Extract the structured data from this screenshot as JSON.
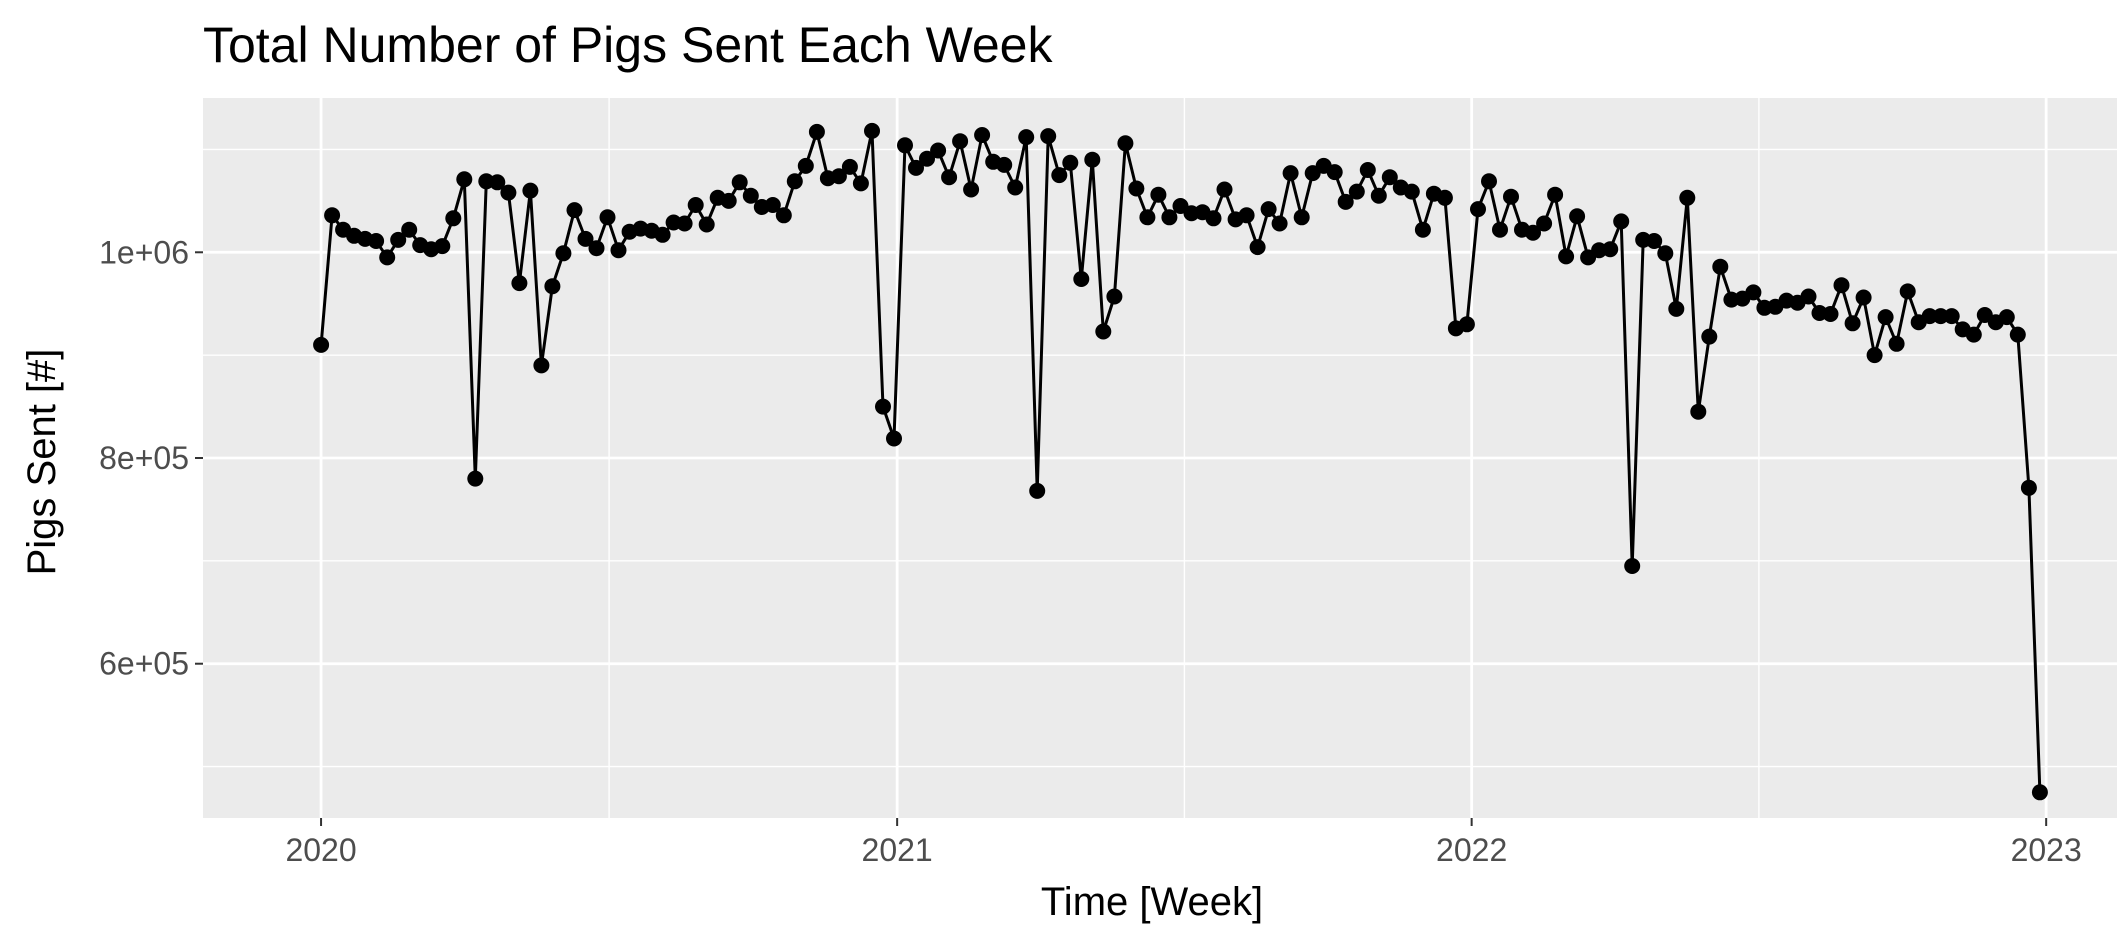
{
  "chart_data": {
    "type": "line",
    "title": "Total Number of Pigs Sent Each Week",
    "xlabel": "Time [Week]",
    "ylabel": "Pigs Sent [#]",
    "x_ticks": [
      "2020",
      "2021",
      "2022",
      "2023"
    ],
    "y_ticks": [
      "6e+05",
      "8e+05",
      "1e+06"
    ],
    "y_tick_values": [
      600000,
      800000,
      1000000
    ],
    "xlim": [
      "2019-10-18",
      "2023-02-15"
    ],
    "ylim": [
      450000,
      1150000
    ],
    "grid": true,
    "legend": "none",
    "colors": {
      "panel": "#ebebeb",
      "grid": "#ffffff",
      "line": "#000000",
      "point": "#000000"
    },
    "series": [
      {
        "x": [
          "2020-01-01",
          "2020-01-08",
          "2020-01-15",
          "2020-01-22",
          "2020-01-29",
          "2020-02-05",
          "2020-02-12",
          "2020-02-19",
          "2020-02-26",
          "2020-03-04",
          "2020-03-11",
          "2020-03-18",
          "2020-03-25",
          "2020-04-01",
          "2020-04-08",
          "2020-04-15",
          "2020-04-22",
          "2020-04-29",
          "2020-05-06",
          "2020-05-13",
          "2020-05-20",
          "2020-05-27",
          "2020-06-03",
          "2020-06-10",
          "2020-06-17",
          "2020-06-24",
          "2020-07-01",
          "2020-07-08",
          "2020-07-15",
          "2020-07-22",
          "2020-07-29",
          "2020-08-05",
          "2020-08-12",
          "2020-08-19",
          "2020-08-26",
          "2020-09-02",
          "2020-09-09",
          "2020-09-16",
          "2020-09-23",
          "2020-09-30",
          "2020-10-07",
          "2020-10-14",
          "2020-10-21",
          "2020-10-28",
          "2020-11-04",
          "2020-11-11",
          "2020-11-18",
          "2020-11-25",
          "2020-12-02",
          "2020-12-09",
          "2020-12-16",
          "2020-12-23",
          "2020-12-30",
          "2021-01-06",
          "2021-01-13",
          "2021-01-20",
          "2021-01-27",
          "2021-02-03",
          "2021-02-10",
          "2021-02-17",
          "2021-02-24",
          "2021-03-03",
          "2021-03-10",
          "2021-03-17",
          "2021-03-24",
          "2021-03-31",
          "2021-04-07",
          "2021-04-14",
          "2021-04-21",
          "2021-04-28",
          "2021-05-05",
          "2021-05-12",
          "2021-05-19",
          "2021-05-26",
          "2021-06-02",
          "2021-06-09",
          "2021-06-16",
          "2021-06-23",
          "2021-06-30",
          "2021-07-07",
          "2021-07-14",
          "2021-07-21",
          "2021-07-28",
          "2021-08-04",
          "2021-08-11",
          "2021-08-18",
          "2021-08-25",
          "2021-09-01",
          "2021-09-08",
          "2021-09-15",
          "2021-09-22",
          "2021-09-29",
          "2021-10-06",
          "2021-10-13",
          "2021-10-20",
          "2021-10-27",
          "2021-11-03",
          "2021-11-10",
          "2021-11-17",
          "2021-11-24",
          "2021-12-01",
          "2021-12-08",
          "2021-12-15",
          "2021-12-22",
          "2021-12-29",
          "2022-01-05",
          "2022-01-12",
          "2022-01-19",
          "2022-01-26",
          "2022-02-02",
          "2022-02-09",
          "2022-02-16",
          "2022-02-23",
          "2022-03-02",
          "2022-03-09",
          "2022-03-16",
          "2022-03-23",
          "2022-03-30",
          "2022-04-06",
          "2022-04-13",
          "2022-04-20",
          "2022-04-27",
          "2022-05-04",
          "2022-05-11",
          "2022-05-18",
          "2022-05-25",
          "2022-06-01",
          "2022-06-08",
          "2022-06-15",
          "2022-06-22",
          "2022-06-29",
          "2022-07-06",
          "2022-07-13",
          "2022-07-20",
          "2022-07-27",
          "2022-08-03",
          "2022-08-10",
          "2022-08-17",
          "2022-08-24",
          "2022-08-31",
          "2022-09-07",
          "2022-09-14",
          "2022-09-21",
          "2022-09-28",
          "2022-10-05",
          "2022-10-12",
          "2022-10-19",
          "2022-10-26",
          "2022-11-02",
          "2022-11-09",
          "2022-11-16",
          "2022-11-23",
          "2022-11-30",
          "2022-12-07",
          "2022-12-14",
          "2022-12-21",
          "2022-12-28"
        ],
        "values": [
          910000,
          1036000,
          1022000,
          1016000,
          1013000,
          1011000,
          995000,
          1012000,
          1022000,
          1007000,
          1003000,
          1006000,
          1033000,
          1071000,
          780000,
          1069000,
          1068000,
          1058000,
          970000,
          1060000,
          890000,
          967000,
          999000,
          1041000,
          1013000,
          1004000,
          1034000,
          1002000,
          1020000,
          1023000,
          1021000,
          1017000,
          1029000,
          1028000,
          1046000,
          1027000,
          1053000,
          1050000,
          1068000,
          1055000,
          1044000,
          1046000,
          1036000,
          1069000,
          1084000,
          1117000,
          1072000,
          1074000,
          1083000,
          1067000,
          1118000,
          850000,
          819000,
          1104000,
          1082000,
          1091000,
          1099000,
          1073000,
          1108000,
          1061000,
          1114000,
          1088000,
          1085000,
          1063000,
          1112000,
          768000,
          1113000,
          1075000,
          1087000,
          974000,
          1090000,
          923000,
          957000,
          1106000,
          1062000,
          1034000,
          1056000,
          1034000,
          1045000,
          1038000,
          1039000,
          1033000,
          1061000,
          1032000,
          1036000,
          1005000,
          1042000,
          1028000,
          1077000,
          1034000,
          1077000,
          1084000,
          1078000,
          1049000,
          1059000,
          1080000,
          1055000,
          1073000,
          1063000,
          1059000,
          1022000,
          1057000,
          1053000,
          926000,
          930000,
          1042000,
          1069000,
          1022000,
          1054000,
          1022000,
          1019000,
          1028000,
          1056000,
          996000,
          1035000,
          995000,
          1002000,
          1003000,
          1030000,
          695000,
          1012000,
          1011000,
          999000,
          945000,
          1053000,
          845000,
          918000,
          986000,
          954000,
          955000,
          961000,
          946000,
          947000,
          953000,
          951000,
          957000,
          941000,
          940000,
          968000,
          931000,
          956000,
          900000,
          937000,
          911000,
          962000,
          932000,
          938000,
          938000,
          938000,
          925000,
          920000,
          939000,
          932000,
          937000,
          920000,
          771000,
          475000
        ]
      }
    ]
  }
}
